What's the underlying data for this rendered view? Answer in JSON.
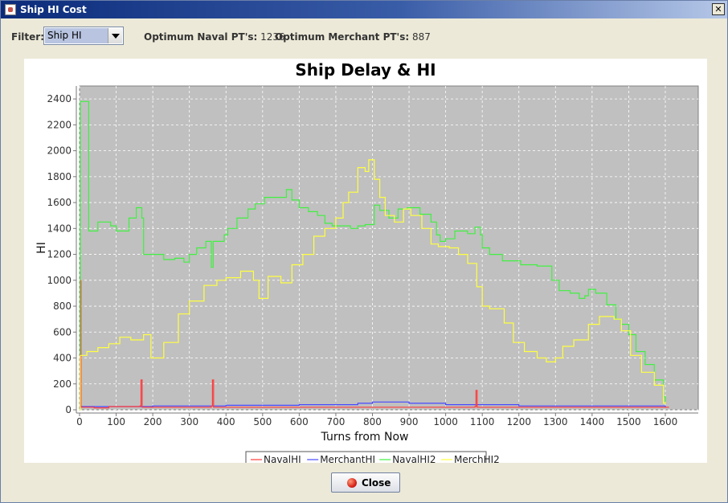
{
  "window": {
    "title": "Ship HI Cost",
    "close_glyph": "✕"
  },
  "toolbar": {
    "filter_label": "Filter:",
    "filter_value": "Ship HI",
    "naval_label": "Optimum Naval PT's:",
    "naval_value": "1236",
    "merchant_label": "Optimum Merchant PT's:",
    "merchant_value": "887"
  },
  "buttons": {
    "close_label": "Close"
  },
  "colors": {
    "plot_bg": "#c0c0c0",
    "NavalHI": "#ff3b3b",
    "MerchantHI": "#4848ff",
    "NavalHI2": "#40f040",
    "MerchHI2": "#ffff40"
  },
  "chart_data": {
    "type": "line",
    "title": "Ship Delay & HI",
    "xlabel": "Turns from Now",
    "ylabel": "HI",
    "xlim": [
      0,
      1690
    ],
    "ylim": [
      0,
      2500
    ],
    "xticks": [
      0,
      100,
      200,
      300,
      400,
      500,
      600,
      700,
      800,
      900,
      1000,
      1100,
      1200,
      1300,
      1400,
      1500,
      1600
    ],
    "yticks": [
      0,
      200,
      400,
      600,
      800,
      1000,
      1200,
      1400,
      1600,
      1800,
      2000,
      2200,
      2400
    ],
    "grid": true,
    "legend": "bottom",
    "series": [
      {
        "name": "NavalHI",
        "x": [
          0,
          2,
          4,
          40,
          80,
          165,
          168,
          171,
          360,
          363,
          366,
          1080,
          1083,
          1086,
          1610
        ],
        "values": [
          0,
          1000,
          20,
          15,
          25,
          30,
          230,
          20,
          30,
          230,
          20,
          25,
          150,
          20,
          20
        ]
      },
      {
        "name": "MerchantHI",
        "x": [
          0,
          200,
          400,
          600,
          760,
          800,
          900,
          1000,
          1200,
          1400,
          1600
        ],
        "values": [
          25,
          30,
          35,
          40,
          50,
          60,
          50,
          40,
          30,
          30,
          20
        ]
      },
      {
        "name": "NavalHI2",
        "x": [
          0,
          2,
          25,
          50,
          85,
          100,
          135,
          155,
          170,
          175,
          230,
          260,
          285,
          300,
          320,
          345,
          360,
          365,
          395,
          405,
          430,
          460,
          480,
          505,
          545,
          565,
          580,
          600,
          625,
          650,
          670,
          690,
          710,
          740,
          760,
          780,
          805,
          820,
          845,
          870,
          895,
          930,
          960,
          975,
          985,
          1000,
          1025,
          1060,
          1080,
          1095,
          1100,
          1120,
          1155,
          1180,
          1205,
          1250,
          1290,
          1310,
          1340,
          1365,
          1380,
          1390,
          1410,
          1440,
          1465,
          1480,
          1500,
          1520,
          1545,
          1570,
          1595,
          1600
        ],
        "values": [
          0,
          2380,
          1380,
          1450,
          1420,
          1380,
          1480,
          1560,
          1480,
          1200,
          1160,
          1170,
          1140,
          1200,
          1250,
          1300,
          1100,
          1300,
          1350,
          1400,
          1480,
          1550,
          1590,
          1640,
          1640,
          1700,
          1620,
          1560,
          1530,
          1500,
          1440,
          1420,
          1420,
          1400,
          1420,
          1430,
          1580,
          1540,
          1480,
          1550,
          1560,
          1510,
          1450,
          1350,
          1300,
          1320,
          1380,
          1360,
          1410,
          1350,
          1250,
          1200,
          1150,
          1150,
          1120,
          1110,
          1000,
          920,
          900,
          860,
          880,
          930,
          900,
          810,
          700,
          660,
          580,
          450,
          350,
          230,
          100,
          50
        ]
      },
      {
        "name": "MerchHI2",
        "x": [
          0,
          2,
          20,
          50,
          80,
          110,
          140,
          175,
          195,
          230,
          270,
          300,
          340,
          375,
          400,
          440,
          475,
          490,
          515,
          550,
          580,
          610,
          640,
          670,
          700,
          720,
          735,
          760,
          780,
          790,
          805,
          820,
          835,
          860,
          885,
          905,
          935,
          960,
          980,
          1010,
          1035,
          1060,
          1085,
          1100,
          1120,
          1160,
          1185,
          1215,
          1250,
          1275,
          1300,
          1320,
          1350,
          1390,
          1420,
          1460,
          1480,
          1505,
          1535,
          1570,
          1595,
          1600
        ],
        "values": [
          0,
          420,
          450,
          480,
          510,
          560,
          540,
          580,
          400,
          520,
          740,
          840,
          960,
          1000,
          1020,
          1070,
          1000,
          860,
          1030,
          980,
          1120,
          1200,
          1340,
          1400,
          1480,
          1600,
          1680,
          1870,
          1840,
          1930,
          1780,
          1640,
          1500,
          1450,
          1550,
          1500,
          1400,
          1280,
          1260,
          1250,
          1200,
          1130,
          950,
          800,
          780,
          670,
          520,
          450,
          400,
          370,
          400,
          490,
          540,
          660,
          720,
          700,
          610,
          420,
          290,
          190,
          50,
          60
        ]
      }
    ]
  }
}
